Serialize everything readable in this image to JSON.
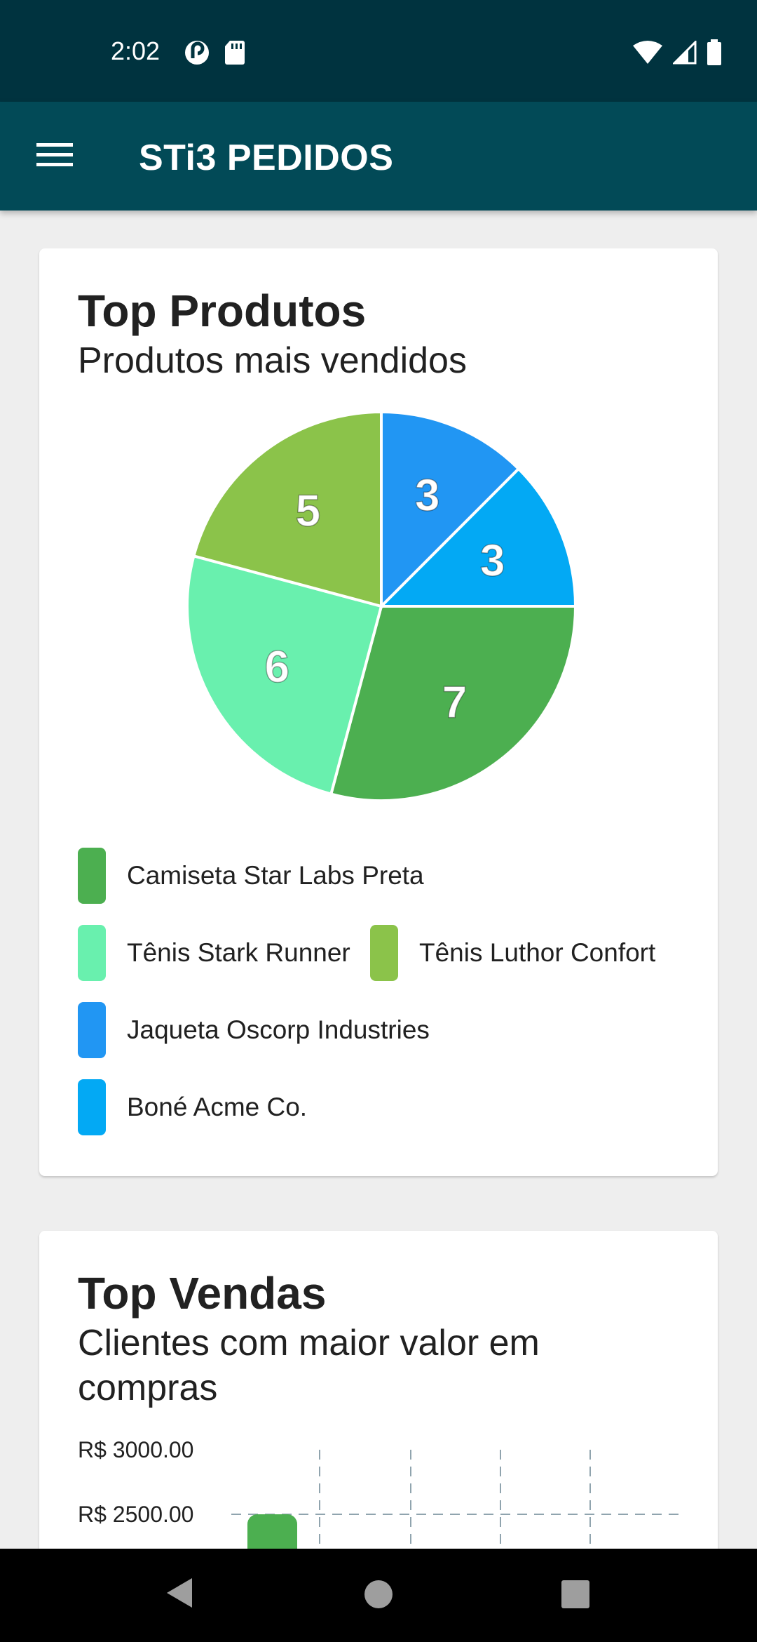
{
  "status_bar": {
    "time": "2:02",
    "left_icons": [
      "pocket-casts-icon",
      "sd-card-icon"
    ],
    "right_icons": [
      "wifi-icon",
      "cellular-signal-icon",
      "battery-icon"
    ]
  },
  "app_bar": {
    "menu_icon": "hamburger-menu-icon",
    "title": "STi3 PEDIDOS"
  },
  "top_produtos": {
    "title": "Top Produtos",
    "subtitle": "Produtos mais vendidos",
    "chart_data": {
      "type": "pie",
      "series": [
        {
          "name": "Camiseta Star Labs Preta",
          "value": 7,
          "color": "#4caf50"
        },
        {
          "name": "Tênis Stark Runner",
          "value": 6,
          "color": "#69f0ae"
        },
        {
          "name": "Tênis Luthor Confort",
          "value": 5,
          "color": "#8bc34a"
        },
        {
          "name": "Jaqueta Oscorp Industries",
          "value": 3,
          "color": "#2196f3"
        },
        {
          "name": "Boné Acme Co.",
          "value": 3,
          "color": "#03a9f4"
        }
      ]
    }
  },
  "top_vendas": {
    "title": "Top Vendas",
    "subtitle": "Clientes com maior valor em compras",
    "chart_data": {
      "type": "bar",
      "y_tick_labels": [
        "R$ 3000.00",
        "R$ 2500.00"
      ],
      "grid": "dashed",
      "bar_color": "#4caf50"
    }
  },
  "nav_bar": {
    "back_icon": "back-triangle-icon",
    "home_icon": "home-circle-icon",
    "recents_icon": "recents-square-icon"
  }
}
